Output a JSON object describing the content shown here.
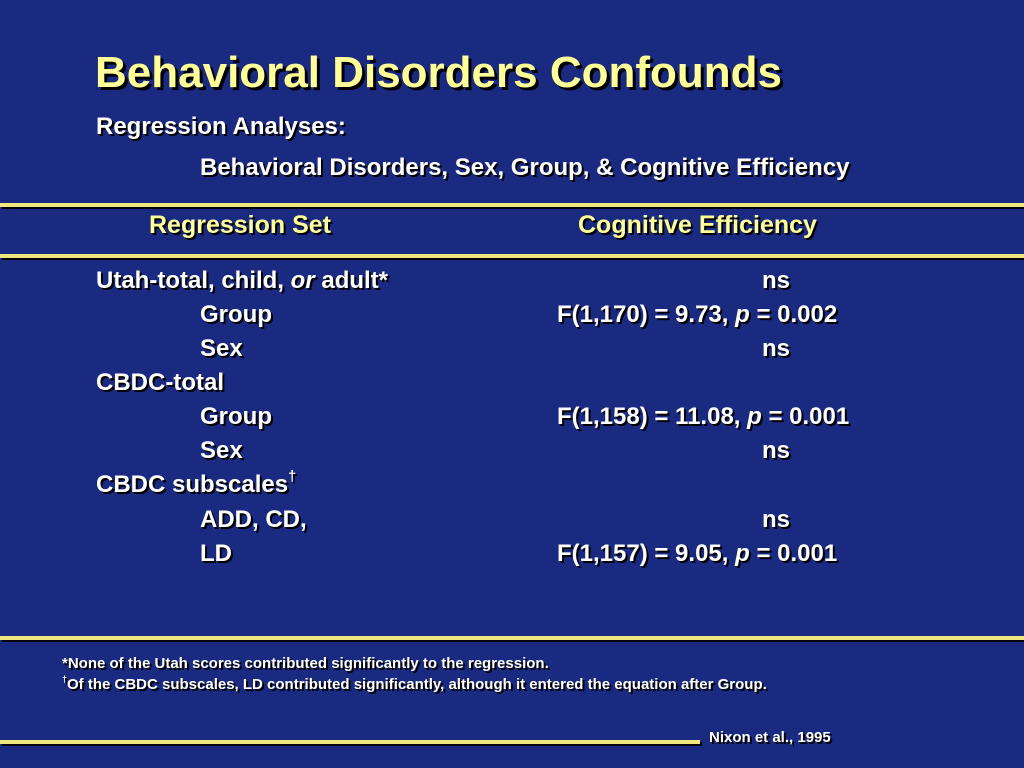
{
  "title": "Behavioral Disorders Confounds",
  "subtitle": "Regression Analyses:",
  "subtitle2": "Behavioral Disorders, Sex, Group, & Cognitive Efficiency",
  "table": {
    "col1_header": "Regression Set",
    "col2_header": "Cognitive Efficiency",
    "rows": [
      {
        "set_pre": "Utah-total, child, ",
        "set_italic": "or",
        "set_post": " adult*",
        "result": "ns"
      },
      {
        "set": "Group",
        "result_pre": "F(1,170) = 9.73, ",
        "result_italic": "p",
        "result_post": " = 0.002"
      },
      {
        "set": "Sex",
        "result": "ns"
      },
      {
        "set": "CBDC-total"
      },
      {
        "set": "Group",
        "result_pre": "F(1,158) = 11.08, ",
        "result_italic": "p",
        "result_post": " = 0.001"
      },
      {
        "set": "Sex",
        "result": "ns"
      },
      {
        "set": "CBDC subscales",
        "set_sup": "†"
      },
      {
        "set": "ADD, CD,",
        "result": "ns"
      },
      {
        "set": "LD",
        "result_pre": "F(1,157) = 9.05, ",
        "result_italic": "p",
        "result_post": " = 0.001"
      }
    ]
  },
  "footnotes": {
    "note1": "*None of the Utah scores contributed significantly to the regression.",
    "note2_mark": "†",
    "note2": "Of the CBDC subscales, LD contributed significantly, although it entered the equation after Group."
  },
  "citation": "Nixon et al., 1995",
  "colors": {
    "background": "#1a2a80",
    "title": "#ffff99",
    "rule": "#f0e680",
    "text": "#ffffff"
  }
}
